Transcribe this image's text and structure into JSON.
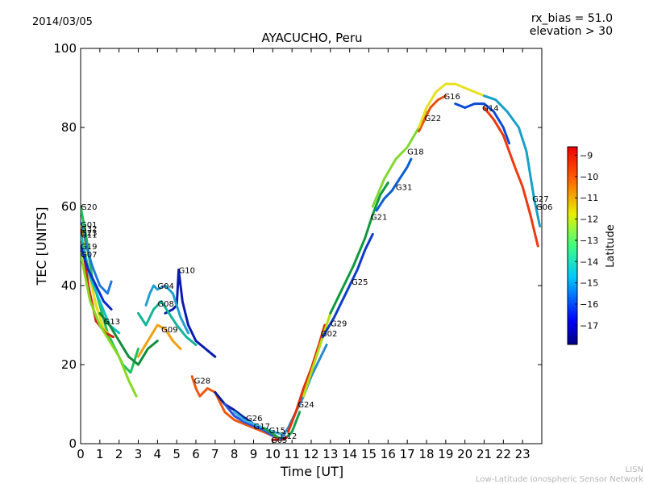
{
  "header": {
    "date": "2014/03/05",
    "title": "AYACUCHO, Peru",
    "rx_bias": "rx_bias = 51.0",
    "elevation": "elevation > 30"
  },
  "footer": {
    "line1": "LISN",
    "line2": "Low-Latitude Ionospheric Sensor Network"
  },
  "chart_data": {
    "type": "scatter",
    "title": "AYACUCHO, Peru",
    "xlabel": "Time [UT]",
    "ylabel": "TEC [UNITS]",
    "xlim": [
      0,
      24
    ],
    "ylim": [
      0,
      100
    ],
    "xticks": [
      0,
      1,
      2,
      3,
      4,
      5,
      6,
      7,
      8,
      9,
      10,
      11,
      12,
      13,
      14,
      15,
      16,
      17,
      18,
      19,
      20,
      21,
      22,
      23
    ],
    "yticks": [
      0,
      20,
      40,
      60,
      80,
      100
    ],
    "grid": false,
    "colorbar": {
      "label": "Latitude",
      "range": [
        -17.9,
        -8.6
      ],
      "ticks": [
        -9,
        -10,
        -11,
        -12,
        -13,
        -14,
        -15,
        -16,
        -17
      ]
    },
    "series": [
      {
        "name": "G20",
        "label_at": [
          0.0,
          60.0
        ],
        "color": "#1fbf5a",
        "points": [
          [
            0.0,
            60
          ],
          [
            0.3,
            52
          ],
          [
            0.6,
            42
          ],
          [
            1.0,
            35
          ],
          [
            1.4,
            28
          ],
          [
            1.8,
            24
          ],
          [
            2.2,
            20
          ],
          [
            2.6,
            18
          ],
          [
            3.0,
            24
          ]
        ]
      },
      {
        "name": "G01",
        "label_at": [
          0.0,
          55.5
        ],
        "color": "#2277dd",
        "points": [
          [
            0.0,
            56
          ],
          [
            0.3,
            50
          ],
          [
            0.6,
            45
          ],
          [
            1.0,
            40
          ],
          [
            1.4,
            38
          ],
          [
            1.6,
            41
          ]
        ]
      },
      {
        "name": "G32",
        "label_at": [
          0.0,
          54.5
        ],
        "color": "#e6dd10",
        "points": [
          [
            0.0,
            55
          ],
          [
            0.4,
            44
          ],
          [
            0.8,
            35
          ],
          [
            1.2,
            29
          ],
          [
            1.6,
            27
          ]
        ]
      },
      {
        "name": "G23",
        "label_at": [
          0.0,
          53.5
        ],
        "color": "#d62020",
        "points": [
          [
            0.0,
            54
          ],
          [
            0.4,
            40
          ],
          [
            0.8,
            31
          ],
          [
            1.3,
            28
          ],
          [
            1.7,
            27
          ]
        ]
      },
      {
        "name": "G11",
        "label_at": [
          0.0,
          53.0
        ],
        "color": "#10c0c0",
        "points": [
          [
            0.0,
            53
          ],
          [
            0.5,
            42
          ],
          [
            1.0,
            36
          ],
          [
            1.5,
            30
          ],
          [
            2.0,
            28
          ]
        ]
      },
      {
        "name": "G19",
        "label_at": [
          0.0,
          50.0
        ],
        "color": "#0a2ccc",
        "points": [
          [
            0.0,
            50
          ],
          [
            0.4,
            44
          ],
          [
            0.8,
            40
          ],
          [
            1.2,
            36
          ],
          [
            1.6,
            34
          ]
        ]
      },
      {
        "name": "G07",
        "label_at": [
          0.0,
          48.0
        ],
        "color": "#86d820",
        "points": [
          [
            0.0,
            48
          ],
          [
            0.5,
            36
          ],
          [
            1.0,
            30
          ],
          [
            1.5,
            26
          ],
          [
            2.0,
            22
          ],
          [
            2.5,
            16
          ],
          [
            2.9,
            12
          ]
        ]
      },
      {
        "name": "G13",
        "label_at": [
          1.2,
          31.0
        ],
        "color": "#118c3a",
        "points": [
          [
            1.0,
            33
          ],
          [
            1.5,
            30
          ],
          [
            2.0,
            26
          ],
          [
            2.5,
            22
          ],
          [
            3.0,
            20
          ],
          [
            3.5,
            24
          ],
          [
            4.0,
            26
          ]
        ]
      },
      {
        "name": "G10",
        "label_at": [
          5.1,
          44.0
        ],
        "color": "#0a1cb0",
        "points": [
          [
            4.4,
            33
          ],
          [
            4.8,
            34
          ],
          [
            5.0,
            35
          ],
          [
            5.1,
            44
          ],
          [
            5.3,
            36
          ],
          [
            5.6,
            30
          ],
          [
            6.0,
            26
          ],
          [
            6.5,
            24
          ],
          [
            7.0,
            22
          ]
        ]
      },
      {
        "name": "G04",
        "label_at": [
          4.0,
          40.0
        ],
        "color": "#20a0d0",
        "points": [
          [
            3.4,
            35
          ],
          [
            3.6,
            38
          ],
          [
            3.8,
            40
          ],
          [
            4.0,
            39
          ],
          [
            4.4,
            40
          ],
          [
            4.8,
            38
          ],
          [
            5.2,
            32
          ],
          [
            5.6,
            28
          ]
        ]
      },
      {
        "name": "G08",
        "label_at": [
          4.0,
          35.5
        ],
        "color": "#14b59a",
        "points": [
          [
            3.0,
            33
          ],
          [
            3.4,
            30
          ],
          [
            3.8,
            34
          ],
          [
            4.2,
            36
          ],
          [
            4.6,
            33
          ],
          [
            5.0,
            30
          ],
          [
            5.5,
            27
          ],
          [
            6.0,
            25
          ]
        ]
      },
      {
        "name": "G09",
        "label_at": [
          4.2,
          29.0
        ],
        "color": "#f0a010",
        "points": [
          [
            3.0,
            22
          ],
          [
            3.5,
            26
          ],
          [
            4.0,
            30
          ],
          [
            4.4,
            29
          ],
          [
            4.8,
            26
          ],
          [
            5.2,
            24
          ]
        ]
      },
      {
        "name": "G28",
        "label_at": [
          5.9,
          16.0
        ],
        "color": "#ee5810",
        "points": [
          [
            5.8,
            17
          ],
          [
            6.0,
            14
          ],
          [
            6.2,
            12
          ],
          [
            6.6,
            14
          ],
          [
            7.0,
            13
          ],
          [
            7.5,
            8
          ],
          [
            8.0,
            6
          ],
          [
            8.5,
            5
          ],
          [
            9.0,
            4
          ],
          [
            9.5,
            3
          ],
          [
            10.0,
            2
          ],
          [
            10.4,
            1
          ]
        ]
      },
      {
        "name": "G26",
        "label_at": [
          8.6,
          6.5
        ],
        "color": "#06209c",
        "points": [
          [
            7.0,
            13
          ],
          [
            7.5,
            10
          ],
          [
            8.0,
            8.5
          ],
          [
            8.4,
            7
          ],
          [
            8.7,
            6
          ],
          [
            9.0,
            5
          ]
        ]
      },
      {
        "name": "G17",
        "label_at": [
          9.0,
          4.5
        ],
        "color": "#2a52dd",
        "points": [
          [
            7.5,
            10
          ],
          [
            8.0,
            7
          ],
          [
            8.5,
            5.5
          ],
          [
            9.0,
            4.5
          ],
          [
            9.5,
            3.5
          ],
          [
            10.0,
            2
          ]
        ]
      },
      {
        "name": "G15",
        "label_at": [
          9.8,
          3.5
        ],
        "color": "#36b3e0",
        "points": [
          [
            8.0,
            8
          ],
          [
            8.5,
            6
          ],
          [
            9.0,
            5
          ],
          [
            9.5,
            4
          ],
          [
            10.0,
            3
          ],
          [
            10.4,
            2.5
          ]
        ]
      },
      {
        "name": "G12",
        "label_at": [
          10.4,
          2.0
        ],
        "color": "#15a050",
        "points": [
          [
            9.5,
            4
          ],
          [
            10.0,
            2.5
          ],
          [
            10.3,
            1.5
          ],
          [
            10.6,
            1
          ],
          [
            11.0,
            3
          ],
          [
            11.4,
            8
          ]
        ]
      },
      {
        "name": "G05",
        "label_at": [
          9.9,
          1.0
        ],
        "color": "#d01818",
        "points": [
          [
            10.0,
            1
          ],
          [
            10.5,
            1
          ],
          [
            10.7,
            1.5
          ]
        ]
      },
      {
        "name": "G24",
        "label_at": [
          11.3,
          10.0
        ],
        "color": "#2a8ad0",
        "points": [
          [
            10.4,
            1
          ],
          [
            10.8,
            4
          ],
          [
            11.2,
            8
          ],
          [
            11.6,
            12
          ],
          [
            12.0,
            17
          ],
          [
            12.4,
            21
          ],
          [
            12.8,
            25
          ]
        ]
      },
      {
        "name": "G02",
        "label_at": [
          12.5,
          28.0
        ],
        "color": "#e63010",
        "points": [
          [
            10.8,
            3
          ],
          [
            11.2,
            8
          ],
          [
            11.6,
            14
          ],
          [
            12.0,
            19
          ],
          [
            12.4,
            25
          ],
          [
            12.7,
            30
          ]
        ]
      },
      {
        "name": "G29",
        "label_at": [
          13.0,
          30.5
        ],
        "color": "#b0e010",
        "points": [
          [
            11.6,
            12
          ],
          [
            12.0,
            18
          ],
          [
            12.4,
            24
          ],
          [
            12.8,
            30
          ],
          [
            13.0,
            33
          ]
        ]
      },
      {
        "name": "G25",
        "label_at": [
          14.1,
          41.0
        ],
        "color": "#0c3cc8",
        "points": [
          [
            12.6,
            27
          ],
          [
            13.2,
            32
          ],
          [
            13.6,
            36
          ],
          [
            14.0,
            40
          ],
          [
            14.4,
            44
          ],
          [
            14.8,
            49
          ],
          [
            15.2,
            53
          ]
        ]
      },
      {
        "name": "G21",
        "label_at": [
          15.1,
          57.5
        ],
        "color": "#0e9a3c",
        "points": [
          [
            13.0,
            33
          ],
          [
            13.6,
            39
          ],
          [
            14.2,
            45
          ],
          [
            14.8,
            52
          ],
          [
            15.2,
            58
          ],
          [
            15.6,
            63
          ],
          [
            16.0,
            66
          ]
        ]
      },
      {
        "name": "G31",
        "label_at": [
          16.4,
          65.0
        ],
        "color": "#0a60d0",
        "points": [
          [
            15.4,
            59
          ],
          [
            15.8,
            62
          ],
          [
            16.2,
            64
          ],
          [
            16.6,
            67
          ],
          [
            17.0,
            70
          ],
          [
            17.2,
            72
          ]
        ]
      },
      {
        "name": "G18",
        "label_at": [
          17.0,
          74.0
        ],
        "color": "#80d830",
        "points": [
          [
            15.2,
            60
          ],
          [
            15.8,
            67
          ],
          [
            16.4,
            72
          ],
          [
            17.0,
            75
          ],
          [
            17.6,
            80
          ],
          [
            18.0,
            84
          ]
        ]
      },
      {
        "name": "G22",
        "label_at": [
          17.9,
          82.5
        ],
        "color": "#e85010",
        "points": [
          [
            17.6,
            79
          ],
          [
            17.9,
            82
          ],
          [
            18.2,
            85
          ],
          [
            18.6,
            87
          ],
          [
            19.0,
            88
          ]
        ]
      },
      {
        "name": "G16",
        "label_at": [
          18.9,
          88.0
        ],
        "color": "#e8e020",
        "points": [
          [
            17.6,
            80
          ],
          [
            18.0,
            85
          ],
          [
            18.5,
            89
          ],
          [
            19.0,
            91
          ],
          [
            19.5,
            91
          ],
          [
            20.0,
            90
          ],
          [
            20.5,
            89
          ],
          [
            21.0,
            88
          ]
        ]
      },
      {
        "name": "G14",
        "label_at": [
          20.9,
          85.0
        ],
        "color": "#0a4ad8",
        "points": [
          [
            19.5,
            86
          ],
          [
            20.0,
            85
          ],
          [
            20.5,
            86
          ],
          [
            21.0,
            86
          ],
          [
            21.5,
            84
          ],
          [
            22.0,
            80
          ],
          [
            22.3,
            76
          ]
        ]
      },
      {
        "name": "G06",
        "label_at": [
          23.7,
          60.0
        ],
        "color": "#ec3a10",
        "points": [
          [
            21.0,
            85
          ],
          [
            21.5,
            82
          ],
          [
            22.0,
            78
          ],
          [
            22.6,
            70
          ],
          [
            23.0,
            65
          ],
          [
            23.4,
            58
          ],
          [
            23.8,
            50
          ]
        ]
      },
      {
        "name": "G27",
        "label_at": [
          23.5,
          62.0
        ],
        "color": "#18a0c8",
        "points": [
          [
            21.0,
            88
          ],
          [
            21.6,
            87
          ],
          [
            22.2,
            84
          ],
          [
            22.8,
            80
          ],
          [
            23.2,
            74
          ],
          [
            23.6,
            62
          ],
          [
            23.9,
            55
          ]
        ]
      }
    ]
  }
}
